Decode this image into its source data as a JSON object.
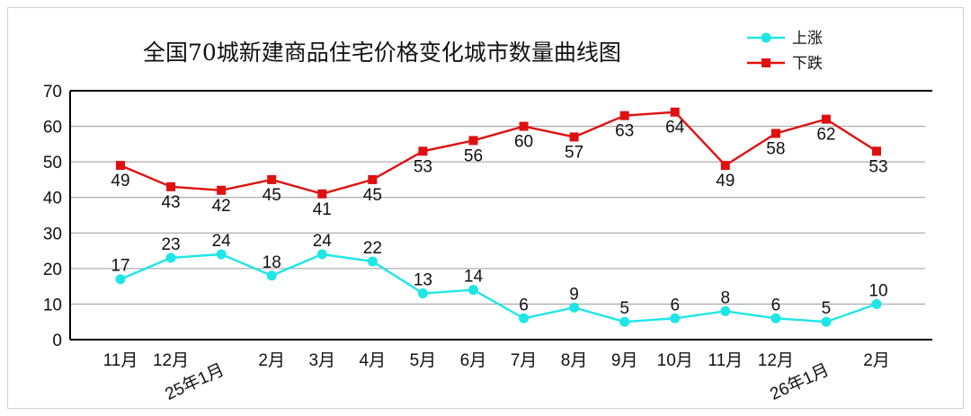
{
  "chart_data": {
    "type": "line",
    "title": "全国70城新建商品住宅价格变化城市数量曲线图",
    "categories": [
      "11月",
      "12月",
      "25年1月",
      "2月",
      "3月",
      "4月",
      "5月",
      "6月",
      "7月",
      "8月",
      "9月",
      "10月",
      "11月",
      "12月",
      "26年1月",
      "2月"
    ],
    "series": [
      {
        "name": "上涨",
        "color": "#1fe6e6",
        "marker": "circle",
        "values": [
          17,
          23,
          24,
          18,
          24,
          22,
          13,
          14,
          6,
          9,
          5,
          6,
          8,
          6,
          5,
          10
        ]
      },
      {
        "name": "下跌",
        "color": "#e01010",
        "marker": "square",
        "values": [
          49,
          43,
          42,
          45,
          41,
          45,
          53,
          56,
          60,
          57,
          63,
          64,
          49,
          58,
          62,
          53
        ]
      }
    ],
    "ylim": [
      0,
      70
    ],
    "yticks": [
      0,
      10,
      20,
      30,
      40,
      50,
      60,
      70
    ],
    "grid": true,
    "legend": "top-right"
  }
}
